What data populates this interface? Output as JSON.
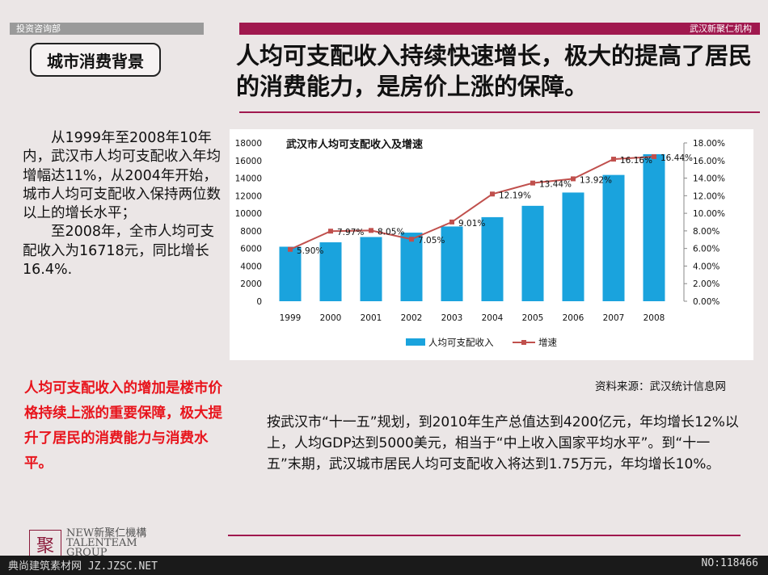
{
  "header": {
    "dept": "投资咨询部",
    "org": "武汉新聚仁机构",
    "section": "城市消费背景",
    "headline": "人均可支配收入持续快速增长，极大的提高了居民的消费能力，是房价上涨的保障。"
  },
  "left_text": {
    "p1": "从1999年至2008年10年内，武汉市人均可支配收入年均增幅达11%，从2004年开始，城市人均可支配收入保持两位数以上的增长水平；",
    "p2": "至2008年，全市人均可支配收入为16718元，同比增长16.4%."
  },
  "highlight": "人均可支配收入的增加是楼市价格持续上涨的重要保障，极大提升了居民的消费能力与消费水平。",
  "source": "资料来源：武汉统计信息网",
  "bottom_text": "按武汉市“十一五”规划，到2010年生产总值达到4200亿元，年均增长12%以上，人均GDP达到5000美元，相当于“中上收入国家平均水平”。到“十一五”末期，武汉城市居民人均可支配收入将达到1.75万元，年均增长10%。",
  "logo": {
    "mark": "聚",
    "line1": "NEW新聚仁機構",
    "line2": "TALENTEAM",
    "line3": "GROUP"
  },
  "footer": {
    "left": "典尚建筑素材网 JZ.JZSC.NET",
    "right": "NO:118466"
  },
  "chart_data": {
    "type": "bar",
    "title": "武汉市人均可支配收入及增速",
    "categories": [
      "1999",
      "2000",
      "2001",
      "2002",
      "2003",
      "2004",
      "2005",
      "2006",
      "2007",
      "2008"
    ],
    "series": [
      {
        "name": "人均可支配收入",
        "type": "bar",
        "axis": "left",
        "color": "#1aa3dd",
        "values": [
          6200,
          6700,
          7300,
          7800,
          8500,
          9560,
          10850,
          12360,
          14360,
          16718
        ]
      },
      {
        "name": "增速",
        "type": "line",
        "axis": "right",
        "color": "#c0504d",
        "values": [
          5.9,
          7.97,
          8.05,
          7.05,
          9.01,
          12.19,
          13.44,
          13.92,
          16.16,
          16.44
        ],
        "labels": [
          "5.90%",
          "7.97%",
          "8.05%",
          "7.05%",
          "9.01%",
          "12.19%",
          "13.44%",
          "13.92%",
          "16.16%",
          "16.44%"
        ]
      }
    ],
    "ylim": [
      0,
      18000
    ],
    "yticks": [
      "0",
      "2000",
      "4000",
      "6000",
      "8000",
      "10000",
      "12000",
      "14000",
      "16000",
      "18000"
    ],
    "y2lim": [
      0,
      18
    ],
    "y2ticks": [
      "0.00%",
      "2.00%",
      "4.00%",
      "6.00%",
      "8.00%",
      "10.00%",
      "12.00%",
      "14.00%",
      "16.00%",
      "18.00%"
    ],
    "legend_position": "bottom"
  }
}
